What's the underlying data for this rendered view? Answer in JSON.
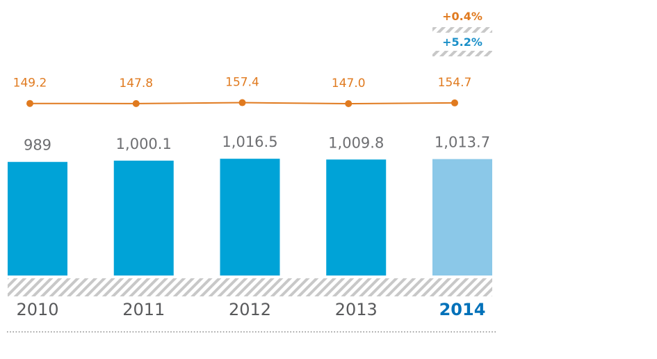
{
  "chart_data": {
    "type": "bar",
    "categories": [
      "2010",
      "2011",
      "2012",
      "2013",
      "2014"
    ],
    "highlight_index": 4,
    "series": [
      {
        "name": "bars",
        "kind": "bar",
        "values": [
          989,
          1000.1,
          1016.5,
          1009.8,
          1013.7
        ],
        "labels": [
          "989",
          "1,000.1",
          "1,016.5",
          "1,009.8",
          "1,013.7"
        ],
        "ylim": [
          0,
          1100
        ]
      },
      {
        "name": "line",
        "kind": "line",
        "values": [
          149.2,
          147.8,
          157.4,
          147.0,
          154.7
        ],
        "labels": [
          "149.2",
          "147.8",
          "157.4",
          "147.0",
          "154.7"
        ]
      }
    ],
    "annotations": [
      {
        "text": "+0.4%",
        "color": "#e07a1f"
      },
      {
        "text": "+5.2%",
        "color": "#1a8fc8"
      }
    ],
    "title": "",
    "xlabel": "",
    "ylabel": ""
  },
  "colors": {
    "bar": "#00a3d7",
    "bar_highlight": "#8bc8e8",
    "line": "#e07a1f",
    "value_text": "#6d6e71",
    "year_text": "#58595b",
    "year_highlight": "#0071b9",
    "hatch": "#c8c8c8"
  }
}
